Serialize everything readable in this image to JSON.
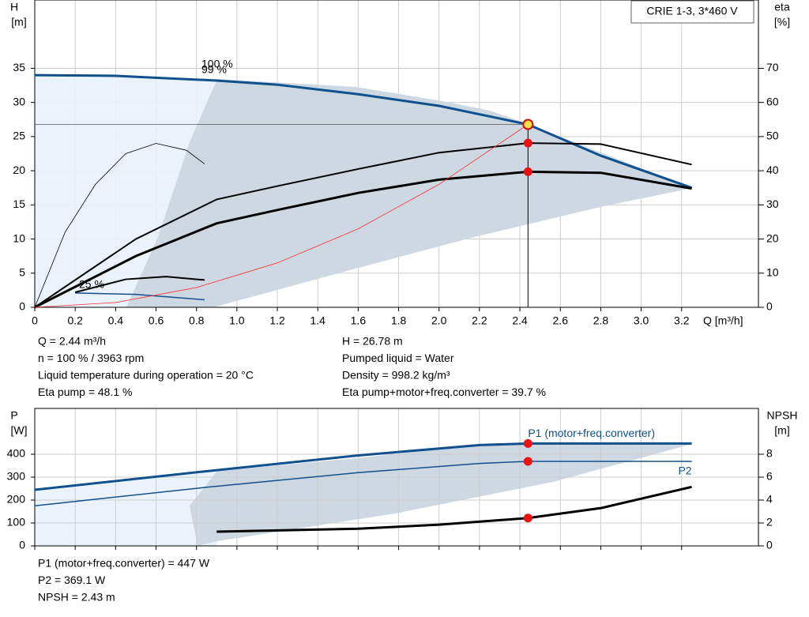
{
  "chart_data": [
    {
      "type": "line",
      "title": "CRIE 1-3, 3*460 V",
      "xlabel": "Q [m³/h]",
      "ylabel": "H",
      "yunit": "[m]",
      "y2label": "eta",
      "y2unit": "[%]",
      "xlim": [
        0,
        3.58
      ],
      "xticks": [
        0,
        0.2,
        0.4,
        0.6,
        0.8,
        {
          "value": 1,
          "label": "1.0"
        },
        1.2,
        1.4,
        1.6,
        1.8,
        {
          "value": 2,
          "label": "2.0"
        },
        2.2,
        2.4,
        2.6,
        2.8,
        {
          "value": 3,
          "label": "3.0"
        },
        3.2
      ],
      "ylim": [
        0,
        45
      ],
      "yticks": [
        0,
        5,
        10,
        15,
        20,
        25,
        30,
        35
      ],
      "y2lim": [
        0,
        90
      ],
      "y2ticks": [
        0,
        10,
        20,
        30,
        40,
        50,
        60,
        70
      ],
      "grid": true,
      "duty_x": 2.44,
      "annotations": [
        "100 %",
        "99 %",
        "25 %"
      ],
      "series": [
        {
          "color": "#10508c",
          "width": 3,
          "x": [
            0,
            0.4,
            0.9,
            1.2,
            1.6,
            2.0,
            2.44,
            2.8,
            3.25
          ],
          "values": [
            34.0,
            33.9,
            33.2,
            32.6,
            31.2,
            29.5,
            26.78,
            22.2,
            17.5
          ],
          "duty": "ring"
        },
        {
          "color": "#10508c",
          "width": 1.5,
          "x": [
            0.2,
            0.5,
            0.84
          ],
          "values": [
            2.1,
            1.9,
            1.1
          ]
        },
        {
          "color": "#000000",
          "width": 2,
          "axis": "y2",
          "x": [
            0,
            0.5,
            0.9,
            1.2,
            1.6,
            2.0,
            2.44,
            2.8,
            3.25
          ],
          "values": [
            0,
            20,
            31.6,
            35.5,
            40.5,
            45.3,
            48.1,
            47.8,
            41.8
          ],
          "duty": "dot"
        },
        {
          "color": "#000000",
          "width": 3,
          "axis": "y2",
          "x": [
            0,
            0.5,
            0.9,
            1.2,
            1.6,
            2.0,
            2.44,
            2.8,
            3.25
          ],
          "values": [
            0,
            15,
            24.6,
            28.5,
            33.5,
            37.4,
            39.7,
            39.4,
            34.8
          ],
          "duty": "dot"
        },
        {
          "color": "#000000",
          "width": 2,
          "axis": "y2",
          "x": [
            0.2,
            0.45,
            0.65,
            0.84
          ],
          "values": [
            4.4,
            8.2,
            9.0,
            8.0
          ]
        },
        {
          "color": "#000000",
          "width": 0.8,
          "axis": "y2",
          "x": [
            0,
            0.15,
            0.3,
            0.45,
            0.6,
            0.75,
            0.84
          ],
          "values": [
            0,
            22,
            36,
            45,
            48,
            46,
            42
          ]
        },
        {
          "color": "#ff3030",
          "width": 0.8,
          "x": [
            0,
            0.4,
            0.8,
            1.2,
            1.6,
            2.0,
            2.44
          ],
          "values": [
            0,
            0.7,
            2.9,
            6.5,
            11.5,
            18.0,
            26.78
          ]
        }
      ]
    },
    {
      "type": "line",
      "ylabel": "P",
      "yunit": "[W]",
      "y2label": "NPSH",
      "y2unit": "[m]",
      "xlim": [
        0,
        3.58
      ],
      "xticks": [
        0,
        0.2,
        0.4,
        0.6,
        0.8,
        1,
        1.2,
        1.4,
        1.6,
        1.8,
        2,
        2.2,
        2.4,
        2.6,
        2.8,
        3,
        3.2
      ],
      "ylim": [
        0,
        600
      ],
      "yticks": [
        0,
        100,
        200,
        300,
        400
      ],
      "y2lim": [
        0,
        12
      ],
      "y2ticks": [
        0,
        2,
        4,
        6,
        8
      ],
      "grid": true,
      "duty_x": 2.44,
      "series": [
        {
          "name": "P1 (motor+freq.converter)",
          "color": "#10508c",
          "width": 3,
          "x": [
            0,
            0.84,
            1.6,
            2.2,
            2.44,
            3.25
          ],
          "values": [
            245,
            325,
            395,
            440,
            447,
            447
          ],
          "duty": "dot"
        },
        {
          "name": "P2",
          "color": "#10508c",
          "width": 1.5,
          "x": [
            0,
            0.84,
            1.6,
            2.2,
            2.44,
            3.25
          ],
          "values": [
            175,
            255,
            320,
            360,
            369.1,
            369.1
          ],
          "duty": "dot"
        },
        {
          "color": "#000000",
          "width": 3,
          "axis": "y2",
          "x": [
            0.9,
            1.6,
            2.0,
            2.44,
            2.8,
            3.25
          ],
          "values": [
            1.24,
            1.5,
            1.85,
            2.43,
            3.3,
            5.15
          ],
          "duty": "dot"
        }
      ]
    }
  ],
  "info_upper_left": [
    "Q = 2.44 m³/h",
    "n = 100 % / 3963 rpm",
    "Liquid temperature during operation = 20 °C",
    "Eta pump = 48.1 %"
  ],
  "info_upper_right": [
    "H = 26.78 m",
    "Pumped liquid = Water",
    "Density = 998.2 kg/m³",
    "Eta pump+motor+freq.converter = 39.7 %"
  ],
  "info_lower": [
    "P1 (motor+freq.converter) = 447 W",
    "P2 = 369.1 W",
    "NPSH = 2.43 m"
  ]
}
